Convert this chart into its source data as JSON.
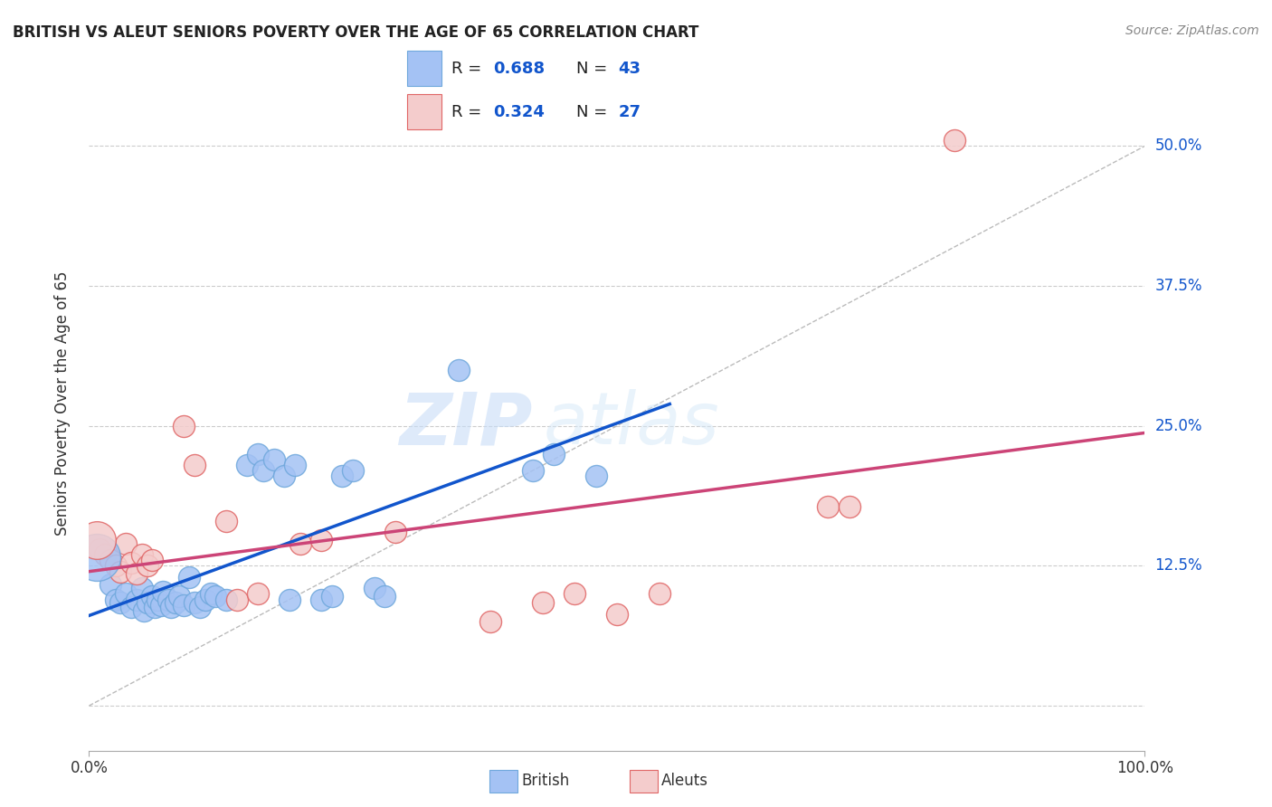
{
  "title": "BRITISH VS ALEUT SENIORS POVERTY OVER THE AGE OF 65 CORRELATION CHART",
  "source": "Source: ZipAtlas.com",
  "ylabel": "Seniors Poverty Over the Age of 65",
  "xlim": [
    0.0,
    1.0
  ],
  "ylim": [
    -0.04,
    0.58
  ],
  "yticks": [
    0.0,
    0.125,
    0.25,
    0.375,
    0.5
  ],
  "ytick_labels": [
    "",
    "12.5%",
    "25.0%",
    "37.5%",
    "50.0%"
  ],
  "xticks": [
    0.0,
    1.0
  ],
  "xtick_labels": [
    "0.0%",
    "100.0%"
  ],
  "british_R": "0.688",
  "british_N": "43",
  "aleut_R": "0.324",
  "aleut_N": "27",
  "british_color": "#a4c2f4",
  "british_edge": "#6fa8dc",
  "aleut_color": "#f4cccc",
  "aleut_edge": "#e06666",
  "trendline_british_color": "#1155cc",
  "trendline_aleut_color": "#cc4477",
  "diagonal_color": "#aaaaaa",
  "watermark_zip": "ZIP",
  "watermark_atlas": "atlas",
  "british_points": [
    [
      0.02,
      0.108
    ],
    [
      0.025,
      0.095
    ],
    [
      0.03,
      0.092
    ],
    [
      0.035,
      0.1
    ],
    [
      0.04,
      0.088
    ],
    [
      0.045,
      0.095
    ],
    [
      0.05,
      0.105
    ],
    [
      0.052,
      0.085
    ],
    [
      0.055,
      0.092
    ],
    [
      0.06,
      0.098
    ],
    [
      0.062,
      0.088
    ],
    [
      0.065,
      0.095
    ],
    [
      0.068,
      0.09
    ],
    [
      0.07,
      0.102
    ],
    [
      0.075,
      0.095
    ],
    [
      0.078,
      0.088
    ],
    [
      0.082,
      0.092
    ],
    [
      0.085,
      0.098
    ],
    [
      0.09,
      0.09
    ],
    [
      0.095,
      0.115
    ],
    [
      0.1,
      0.092
    ],
    [
      0.105,
      0.088
    ],
    [
      0.11,
      0.095
    ],
    [
      0.115,
      0.1
    ],
    [
      0.12,
      0.098
    ],
    [
      0.13,
      0.095
    ],
    [
      0.15,
      0.215
    ],
    [
      0.16,
      0.225
    ],
    [
      0.165,
      0.21
    ],
    [
      0.175,
      0.22
    ],
    [
      0.185,
      0.205
    ],
    [
      0.195,
      0.215
    ],
    [
      0.24,
      0.205
    ],
    [
      0.25,
      0.21
    ],
    [
      0.27,
      0.105
    ],
    [
      0.28,
      0.098
    ],
    [
      0.35,
      0.3
    ],
    [
      0.42,
      0.21
    ],
    [
      0.44,
      0.225
    ],
    [
      0.48,
      0.205
    ],
    [
      0.22,
      0.095
    ],
    [
      0.23,
      0.098
    ],
    [
      0.19,
      0.095
    ]
  ],
  "aleut_points": [
    [
      0.01,
      0.14
    ],
    [
      0.015,
      0.135
    ],
    [
      0.02,
      0.13
    ],
    [
      0.025,
      0.125
    ],
    [
      0.03,
      0.12
    ],
    [
      0.035,
      0.145
    ],
    [
      0.04,
      0.128
    ],
    [
      0.045,
      0.118
    ],
    [
      0.05,
      0.135
    ],
    [
      0.055,
      0.125
    ],
    [
      0.06,
      0.13
    ],
    [
      0.09,
      0.25
    ],
    [
      0.1,
      0.215
    ],
    [
      0.13,
      0.165
    ],
    [
      0.14,
      0.095
    ],
    [
      0.16,
      0.1
    ],
    [
      0.2,
      0.145
    ],
    [
      0.22,
      0.148
    ],
    [
      0.29,
      0.155
    ],
    [
      0.43,
      0.092
    ],
    [
      0.46,
      0.1
    ],
    [
      0.5,
      0.082
    ],
    [
      0.54,
      0.1
    ],
    [
      0.7,
      0.178
    ],
    [
      0.72,
      0.178
    ],
    [
      0.82,
      0.505
    ],
    [
      0.38,
      0.075
    ]
  ],
  "british_large_point": [
    0.007,
    0.133
  ],
  "aleut_large_point": [
    0.007,
    0.148
  ]
}
